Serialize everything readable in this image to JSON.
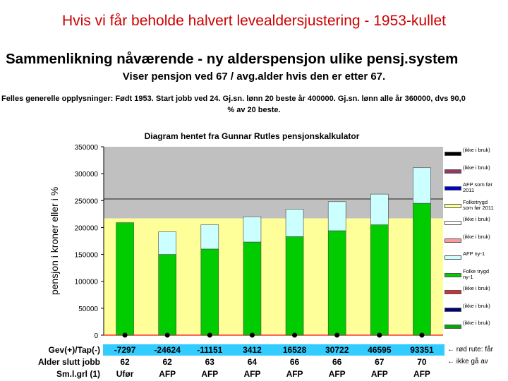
{
  "page_title": "Hvis vi får beholde halvert levealdersjustering - 1953-kullet",
  "slide": {
    "main_title": "Sammenlikning nåværende - ny alderspensjon ulike pensj.system",
    "sub_title": "Viser pensjon ved 67 / avg.alder hvis den er etter 67.",
    "info_line1": "Felles generelle opplysninger: Født 1953. Start jobb ved 24. Gj.sn. lønn 20 beste år 400000. Gj.sn. lønn alle år 360000, dvs 90,0",
    "info_line2": "% av 20 beste."
  },
  "chart_data": {
    "type": "bar",
    "title": "Diagram hentet fra Gunnar Rutles pensjonskalkulator",
    "ylabel": "pensjon i kroner eller i %",
    "ylim": [
      0,
      350000
    ],
    "yticks": [
      "0",
      "50000",
      "100000",
      "150000",
      "200000",
      "250000",
      "300000",
      "350000"
    ],
    "stacked": true,
    "background_bands": [
      {
        "from": 0,
        "to": 217000,
        "color": "#ffff99"
      },
      {
        "from": 217000,
        "to": 350000,
        "color": "#c0c0c0"
      }
    ],
    "reference_line": {
      "value": 253000,
      "color": "#404040"
    },
    "series": [
      {
        "name": "Folketrygd ny-1",
        "color": "#00cc00",
        "values": [
          209000,
          150000,
          160000,
          173000,
          183000,
          194000,
          205000,
          245000
        ]
      },
      {
        "name": "AFP ny-1",
        "color": "#ccffff",
        "values": [
          0,
          42000,
          45000,
          47000,
          51000,
          54000,
          57000,
          66000
        ]
      }
    ],
    "markers": [
      {
        "name": "(ikke i bruk)",
        "color": "#000000",
        "values": [
          0,
          0,
          0,
          0,
          0,
          0,
          0,
          0
        ]
      }
    ],
    "legend_position": "right",
    "grid": false
  },
  "legend": [
    {
      "label": "(ikke i bruk)",
      "color": "#000000"
    },
    {
      "label": "(ikke i bruk)",
      "color": "#993366"
    },
    {
      "label": "AFP som før\n2011",
      "color": "#0000cc"
    },
    {
      "label": "Folketrygd\nsom før 2011",
      "color": "#ffff99"
    },
    {
      "label": "(ikke i bruk)",
      "color": "#ffffff"
    },
    {
      "label": "(ikke i bruk)",
      "color": "#ff9999"
    },
    {
      "label": "AFP ny-1",
      "color": "#ccffff"
    },
    {
      "label": "Folke trygd\nny-1",
      "color": "#00cc00"
    },
    {
      "label": "(ikke i bruk)",
      "color": "#cc3333"
    },
    {
      "label": "(ikke i bruk)",
      "color": "#000080"
    },
    {
      "label": "(ikke i bruk)",
      "color": "#00aa00"
    }
  ],
  "table": {
    "rows": [
      {
        "label": "Gev(+)/Tap(-)",
        "values": [
          "-7297",
          "-24624",
          "-11151",
          "3412",
          "16528",
          "30722",
          "46595",
          "93351"
        ],
        "note": "← rød rute: får"
      },
      {
        "label": "Alder slutt jobb",
        "values": [
          "62",
          "62",
          "63",
          "64",
          "66",
          "66",
          "67",
          "70"
        ],
        "note": "← ikke gå av"
      },
      {
        "label": "Sm.l.grl (1)",
        "values": [
          "Ufør",
          "AFP",
          "AFP",
          "AFP",
          "AFP",
          "AFP",
          "AFP",
          "AFP"
        ],
        "note": ""
      }
    ]
  }
}
